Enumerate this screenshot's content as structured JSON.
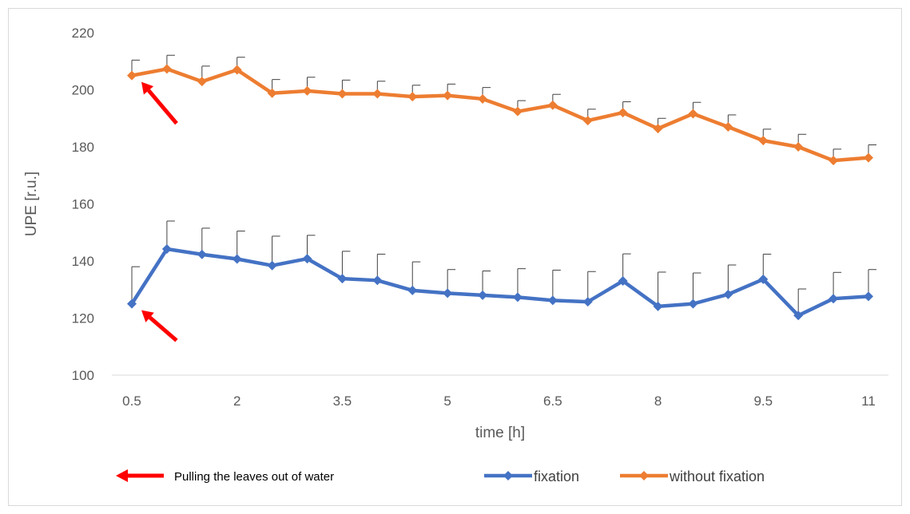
{
  "chart_data": {
    "type": "line",
    "xlabel": "time [h]",
    "ylabel": "UPE [r.u.]",
    "xlim": [
      0.5,
      11
    ],
    "ylim": [
      100,
      220
    ],
    "x_tick_labels": [
      "0.5",
      "2",
      "3.5",
      "5",
      "6.5",
      "8",
      "9.5",
      "11"
    ],
    "x_tick_values": [
      0.5,
      2,
      3.5,
      5,
      6.5,
      8,
      9.5,
      11
    ],
    "y_tick_labels": [
      "100",
      "120",
      "140",
      "160",
      "180",
      "200",
      "220"
    ],
    "y_tick_values": [
      100,
      120,
      140,
      160,
      180,
      200,
      220
    ],
    "grid": false,
    "legend_position": "bottom",
    "x": [
      0.5,
      1,
      1.5,
      2,
      2.5,
      3,
      3.5,
      4,
      4.5,
      5,
      5.5,
      6,
      6.5,
      7,
      7.5,
      8,
      8.5,
      9,
      9.5,
      10,
      10.5,
      11
    ],
    "series": [
      {
        "name": "fixation",
        "color": "#4472C4",
        "values": [
          125,
          144.2,
          142.3,
          140.7,
          138.4,
          140.8,
          133.8,
          133.2,
          129.7,
          128.7,
          128,
          127.3,
          126.2,
          125.7,
          133,
          124.1,
          125,
          128.3,
          133.6,
          120.9,
          126.8,
          127.6
        ],
        "error_plus": [
          13,
          9.8,
          9.2,
          9.8,
          10.3,
          8.2,
          9.6,
          9.2,
          10,
          8.3,
          8.5,
          10,
          10.6,
          10.6,
          9.5,
          12,
          10.8,
          10.3,
          8.8,
          9.3,
          9.2,
          9.4
        ]
      },
      {
        "name": "without fixation",
        "color": "#ED7D31",
        "values": [
          205,
          207.3,
          202.9,
          207,
          198.8,
          199.6,
          198.6,
          198.6,
          197.6,
          198,
          196.8,
          192.4,
          194.6,
          189.2,
          192,
          186.4,
          191.6,
          187,
          182.2,
          180,
          175.2,
          176.2
        ],
        "error_plus": [
          5.4,
          4.8,
          5.4,
          4.4,
          4.8,
          4.8,
          4.8,
          4.4,
          4,
          4,
          4,
          3.8,
          3.8,
          4,
          3.8,
          3.6,
          4,
          4.2,
          4,
          4.4,
          4,
          4.5
        ]
      }
    ],
    "annotations": {
      "arrow_color": "#FF0000",
      "arrow_label": "Pulling the leaves out of water",
      "targets": [
        {
          "series": "without fixation",
          "x": 0.5,
          "y": 205
        },
        {
          "series": "fixation",
          "x": 0.5,
          "y": 125
        }
      ]
    }
  }
}
